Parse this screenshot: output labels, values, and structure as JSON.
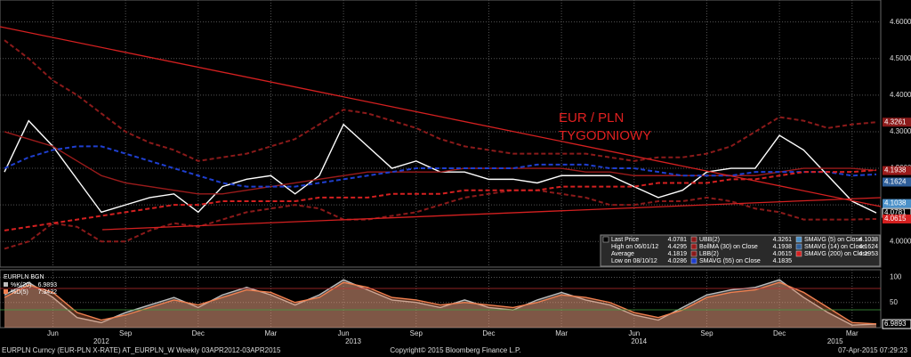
{
  "chart_data": [
    {
      "type": "line",
      "categories": [
        null,
        null,
        "Jun",
        null,
        null,
        "Sep",
        null,
        null,
        "Dec",
        null,
        null,
        "Mar",
        null,
        null,
        "Jun",
        null,
        null,
        "Sep",
        null,
        null,
        "Dec",
        null,
        null,
        "Mar",
        null,
        null,
        "Jun",
        null,
        null,
        "Sep",
        null,
        null,
        "Dec",
        null,
        null,
        "Mar",
        null
      ],
      "years": [
        "2012",
        "2013",
        "2014",
        "2015"
      ],
      "ylim": [
        3.93,
        4.66
      ],
      "yticks": [
        {
          "value": 4.0,
          "label": "4.0000"
        },
        {
          "value": 4.1,
          "label": "4.1000"
        },
        {
          "value": 4.2,
          "label": "4.2000"
        },
        {
          "value": 4.3,
          "label": "4.3000"
        },
        {
          "value": 4.4,
          "label": "4.4000"
        },
        {
          "value": 4.5,
          "label": "4.5000"
        },
        {
          "value": 4.6,
          "label": "4.6000"
        }
      ],
      "grid": true,
      "annotation": [
        "EUR / PLN",
        "TYGODNIOWY"
      ],
      "series": [
        {
          "name": "Last Price",
          "color": "#ffffff",
          "dash": false,
          "values": [
            4.19,
            4.33,
            4.26,
            4.17,
            4.08,
            4.1,
            4.12,
            4.13,
            4.08,
            4.15,
            4.17,
            4.18,
            4.13,
            4.18,
            4.32,
            4.26,
            4.2,
            4.22,
            4.19,
            4.19,
            4.17,
            4.17,
            4.16,
            4.18,
            4.18,
            4.18,
            4.15,
            4.12,
            4.14,
            4.19,
            4.2,
            4.2,
            4.29,
            4.25,
            4.18,
            4.11,
            4.0781
          ]
        },
        {
          "name": "UBB(2)",
          "color": "#8b1a1a",
          "dash": true,
          "values": [
            4.55,
            4.5,
            4.44,
            4.4,
            4.35,
            4.3,
            4.27,
            4.25,
            4.22,
            4.23,
            4.24,
            4.26,
            4.28,
            4.32,
            4.36,
            4.35,
            4.33,
            4.31,
            4.28,
            4.26,
            4.25,
            4.24,
            4.24,
            4.24,
            4.24,
            4.23,
            4.22,
            4.23,
            4.23,
            4.24,
            4.26,
            4.3,
            4.34,
            4.33,
            4.31,
            4.32,
            4.3261
          ]
        },
        {
          "name": "BollMA (30) on Close",
          "color": "#9b1b1b",
          "dash": false,
          "values": [
            4.3,
            4.28,
            4.26,
            4.22,
            4.18,
            4.16,
            4.15,
            4.14,
            4.13,
            4.13,
            4.14,
            4.15,
            4.16,
            4.17,
            4.18,
            4.19,
            4.19,
            4.19,
            4.19,
            4.2,
            4.2,
            4.2,
            4.2,
            4.2,
            4.19,
            4.19,
            4.18,
            4.18,
            4.18,
            4.18,
            4.18,
            4.18,
            4.19,
            4.2,
            4.2,
            4.2,
            4.1938
          ]
        },
        {
          "name": "LBB(2)",
          "color": "#8b1a1a",
          "dash": true,
          "values": [
            3.98,
            4.0,
            4.05,
            4.04,
            4.0,
            4.0,
            4.03,
            4.05,
            4.04,
            4.06,
            4.08,
            4.09,
            4.1,
            4.09,
            4.06,
            4.06,
            4.07,
            4.08,
            4.1,
            4.12,
            4.13,
            4.14,
            4.14,
            4.13,
            4.12,
            4.1,
            4.1,
            4.11,
            4.11,
            4.12,
            4.11,
            4.09,
            4.08,
            4.06,
            4.06,
            4.06,
            4.0615
          ]
        },
        {
          "name": "SMAVG (55) on Close",
          "color": "#1f3fcf",
          "dash": true,
          "values": [
            4.2,
            4.23,
            4.25,
            4.26,
            4.26,
            4.24,
            4.22,
            4.2,
            4.18,
            4.16,
            4.15,
            4.15,
            4.15,
            4.16,
            4.17,
            4.18,
            4.19,
            4.2,
            4.2,
            4.2,
            4.2,
            4.2,
            4.21,
            4.21,
            4.21,
            4.2,
            4.2,
            4.19,
            4.18,
            4.18,
            4.18,
            4.19,
            4.19,
            4.19,
            4.19,
            4.18,
            4.1835
          ]
        },
        {
          "name": "SMAVG (200) on Close",
          "color": "#d42020",
          "dash": true,
          "values": [
            4.03,
            4.04,
            4.05,
            4.06,
            4.07,
            4.08,
            4.09,
            4.1,
            4.1,
            4.11,
            4.11,
            4.11,
            4.11,
            4.12,
            4.12,
            4.12,
            4.13,
            4.13,
            4.13,
            4.14,
            4.14,
            4.14,
            4.14,
            4.15,
            4.15,
            4.15,
            4.15,
            4.16,
            4.16,
            4.16,
            4.17,
            4.17,
            4.18,
            4.19,
            4.19,
            4.19,
            4.1953
          ]
        }
      ],
      "stats": [
        {
          "label": "High on 06/01/12",
          "value": 4.4295
        },
        {
          "label": "Average",
          "value": 4.1819
        },
        {
          "label": "Low on 08/10/12",
          "value": 4.0286
        },
        {
          "label": "SMAVG (5) on Close",
          "value": 4.1038,
          "color": "#4a90c8"
        },
        {
          "label": "SMAVG (14) on Close",
          "value": 4.1624,
          "color": "#2f5f9a"
        }
      ]
    },
    {
      "type": "line",
      "title": "EURPLN BGN",
      "ylim": [
        0,
        115
      ],
      "yticks": [
        50,
        100
      ],
      "series": [
        {
          "name": "%K(20)",
          "color": "#bbbbbb",
          "values": [
            65,
            90,
            60,
            20,
            10,
            30,
            45,
            60,
            40,
            65,
            80,
            65,
            45,
            65,
            95,
            75,
            55,
            50,
            40,
            55,
            40,
            35,
            55,
            70,
            55,
            45,
            25,
            15,
            40,
            65,
            75,
            80,
            95,
            60,
            30,
            5,
            6.9893
          ]
        },
        {
          "name": "%D(5)",
          "color": "#f08050",
          "values": [
            60,
            85,
            70,
            30,
            15,
            25,
            40,
            55,
            45,
            60,
            75,
            70,
            50,
            60,
            90,
            80,
            60,
            55,
            45,
            50,
            45,
            40,
            50,
            65,
            60,
            50,
            30,
            20,
            35,
            60,
            70,
            75,
            90,
            70,
            40,
            10,
            7.3422
          ]
        }
      ]
    }
  ],
  "footer": {
    "left": "EURPLN Curncy (EUR-PLN X-RATE) AT_EURPLN_W  Weekly 03APR2012-03APR2015",
    "center": "Copyright© 2015 Bloomberg Finance L.P.",
    "right": "07-Apr-2015 07:29:23"
  }
}
